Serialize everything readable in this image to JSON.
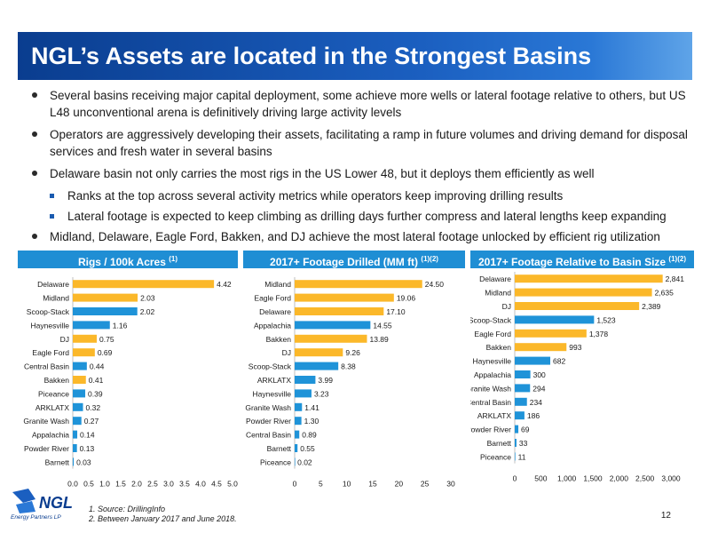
{
  "title": "NGL’s Assets are located in the Strongest Basins",
  "bullets": [
    "Several basins receiving major capital deployment, some achieve more wells or lateral footage relative to others, but US L48 unconventional arena is definitively driving large activity levels",
    "Operators are aggressively developing their assets, facilitating a ramp in future volumes and driving demand for disposal services and fresh water in several basins",
    "Delaware basin not only carries the most rigs in the US Lower 48, but it deploys them efficiently as well"
  ],
  "sub_bullets": [
    "Ranks at the top across several activity metrics while operators keep improving drilling results",
    "Lateral footage is expected to keep climbing as drilling days further compress and lateral lengths keep expanding"
  ],
  "last_bullet": "Midland, Delaware, Eagle Ford, Bakken, and DJ achieve the most lateral footage unlocked by efficient rig utilization",
  "footnotes": [
    "1.  Source: DrillingInfo",
    "2.  Between January 2017 and June 2018."
  ],
  "page_number": "12",
  "logo": {
    "brand": "NGL",
    "tagline": "Energy Partners LP"
  },
  "colors": {
    "highlight": "#fbb82a",
    "other": "#1f93d8",
    "header": "#1f8ed4"
  },
  "chart_data": [
    {
      "type": "bar",
      "orientation": "horizontal",
      "title": "Rigs / 100k Acres",
      "title_note": "(1)",
      "categories": [
        "Delaware",
        "Midland",
        "Scoop-Stack",
        "Haynesville",
        "DJ",
        "Eagle Ford",
        "Central Basin",
        "Bakken",
        "Piceance",
        "ARKLATX",
        "Granite Wash",
        "Appalachia",
        "Powder River",
        "Barnett"
      ],
      "values": [
        4.42,
        2.03,
        2.02,
        1.16,
        0.75,
        0.69,
        0.44,
        0.41,
        0.39,
        0.32,
        0.27,
        0.14,
        0.13,
        0.03
      ],
      "value_labels": [
        "4.42",
        "2.03",
        "2.02",
        "1.16",
        "0.75",
        "0.69",
        "0.44",
        "0.41",
        "0.39",
        "0.32",
        "0.27",
        "0.14",
        "0.13",
        "0.03"
      ],
      "highlight": [
        "Delaware",
        "Midland",
        "DJ",
        "Eagle Ford",
        "Bakken"
      ],
      "xlim": [
        0,
        5
      ],
      "xticks": [
        "0.0",
        "0.5",
        "1.0",
        "1.5",
        "2.0",
        "2.5",
        "3.0",
        "3.5",
        "4.0",
        "4.5",
        "5.0"
      ]
    },
    {
      "type": "bar",
      "orientation": "horizontal",
      "title": "2017+ Footage Drilled (MM ft)",
      "title_note": "(1)(2)",
      "categories": [
        "Midland",
        "Eagle Ford",
        "Delaware",
        "Appalachia",
        "Bakken",
        "DJ",
        "Scoop-Stack",
        "ARKLATX",
        "Haynesville",
        "Granite Wash",
        "Powder River",
        "Central Basin",
        "Barnett",
        "Piceance"
      ],
      "values": [
        24.5,
        19.06,
        17.1,
        14.55,
        13.89,
        9.26,
        8.38,
        3.99,
        3.23,
        1.41,
        1.3,
        0.89,
        0.55,
        0.02
      ],
      "value_labels": [
        "24.50",
        "19.06",
        "17.10",
        "14.55",
        "13.89",
        "9.26",
        "8.38",
        "3.99",
        "3.23",
        "1.41",
        "1.30",
        "0.89",
        "0.55",
        "0.02"
      ],
      "highlight": [
        "Midland",
        "Eagle Ford",
        "Delaware",
        "Bakken",
        "DJ"
      ],
      "xlim": [
        0,
        30
      ],
      "xticks": [
        "0",
        "5",
        "10",
        "15",
        "20",
        "25",
        "30"
      ]
    },
    {
      "type": "bar",
      "orientation": "horizontal",
      "title": "2017+ Footage Relative to Basin Size",
      "title_note": "(1)(2)",
      "categories": [
        "Delaware",
        "Midland",
        "DJ",
        "Scoop-Stack",
        "Eagle Ford",
        "Bakken",
        "Haynesville",
        "Appalachia",
        "Granite Wash",
        "Central Basin",
        "ARKLATX",
        "Powder River",
        "Barnett",
        "Piceance"
      ],
      "values": [
        2841,
        2635,
        2389,
        1523,
        1378,
        993,
        682,
        300,
        294,
        234,
        186,
        69,
        33,
        11
      ],
      "value_labels": [
        "2,841",
        "2,635",
        "2,389",
        "1,523",
        "1,378",
        "993",
        "682",
        "300",
        "294",
        "234",
        "186",
        "69",
        "33",
        "11"
      ],
      "highlight": [
        "Delaware",
        "Midland",
        "DJ",
        "Eagle Ford",
        "Bakken"
      ],
      "xlim": [
        0,
        3000
      ],
      "xticks": [
        "0",
        "500",
        "1,000",
        "1,500",
        "2,000",
        "2,500",
        "3,000"
      ]
    }
  ]
}
